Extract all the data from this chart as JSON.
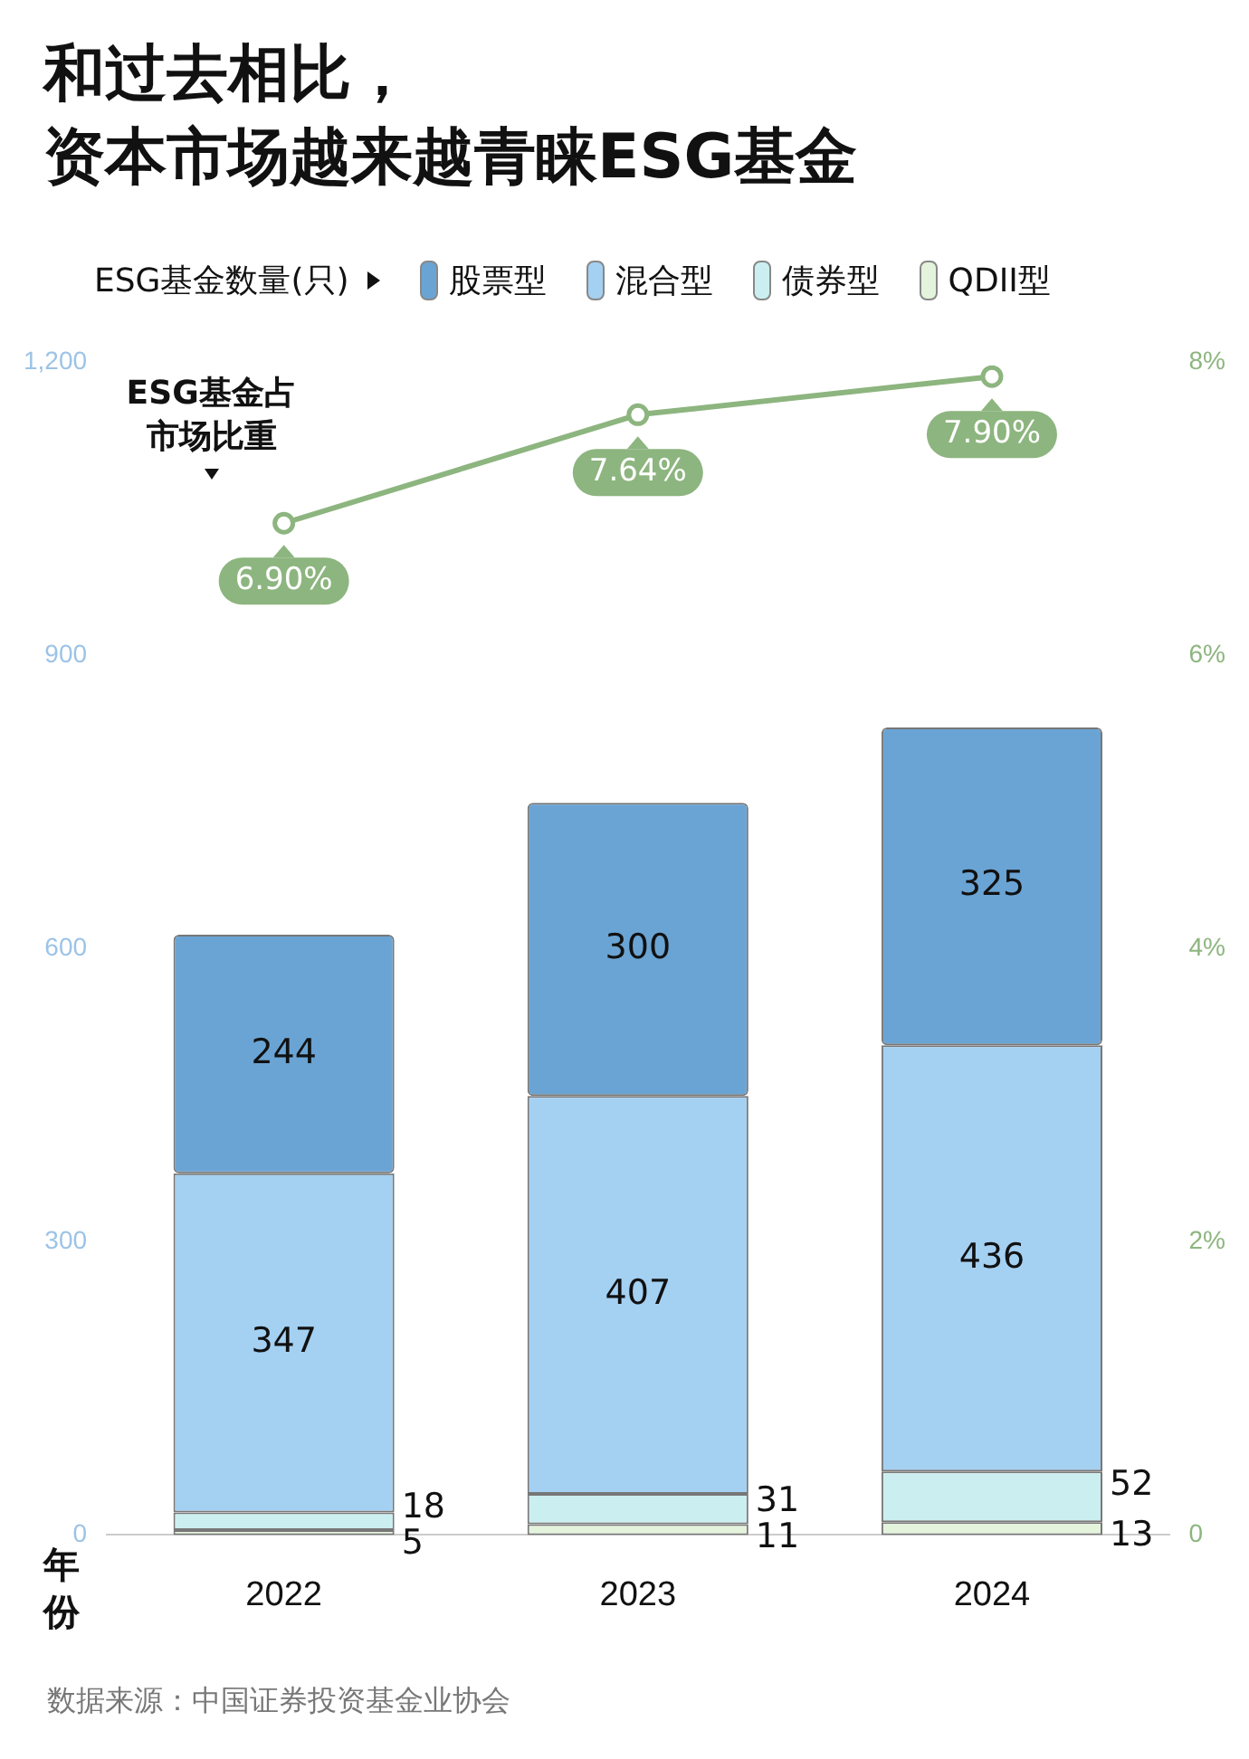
{
  "chart_data": {
    "type": "bar",
    "title": "和过去相比，资本市场越来越青睐ESG基金",
    "legend_title": "ESG基金数量(只)",
    "xlabel": "年份",
    "categories": [
      "2022",
      "2023",
      "2024"
    ],
    "stacked": true,
    "legend": "top",
    "grid": false,
    "data_labels": true,
    "series": [
      {
        "name": "QDII型",
        "color": "#e4f3dc",
        "values": [
          5,
          11,
          13
        ]
      },
      {
        "name": "债券型",
        "color": "#cbeff0",
        "values": [
          18,
          31,
          52
        ]
      },
      {
        "name": "混合型",
        "color": "#a4d0f2",
        "values": [
          347,
          407,
          436
        ]
      },
      {
        "name": "股票型",
        "color": "#6aa4d4",
        "values": [
          244,
          300,
          325
        ]
      },
      {
        "name": "ESG基金占市场比重",
        "type": "line",
        "axis": "y2",
        "color": "#8db57f",
        "marker": "circle",
        "values": [
          6.9,
          7.64,
          7.9
        ],
        "value_labels": [
          "6.90%",
          "7.64%",
          "7.90%"
        ]
      }
    ],
    "ylim": [
      0,
      1200
    ],
    "yticks": [
      0,
      300,
      600,
      900,
      {
        "value": 1200,
        "label": "1,200"
      }
    ],
    "y2lim": [
      0,
      8
    ],
    "y2ticks": [
      0,
      {
        "value": 2,
        "label": "2%"
      },
      {
        "value": 4,
        "label": "4%"
      },
      {
        "value": 6,
        "label": "6%"
      },
      {
        "value": 8,
        "label": "8%"
      }
    ],
    "annotations": [
      "数据来源：中国证券投资基金业协会"
    ]
  }
}
